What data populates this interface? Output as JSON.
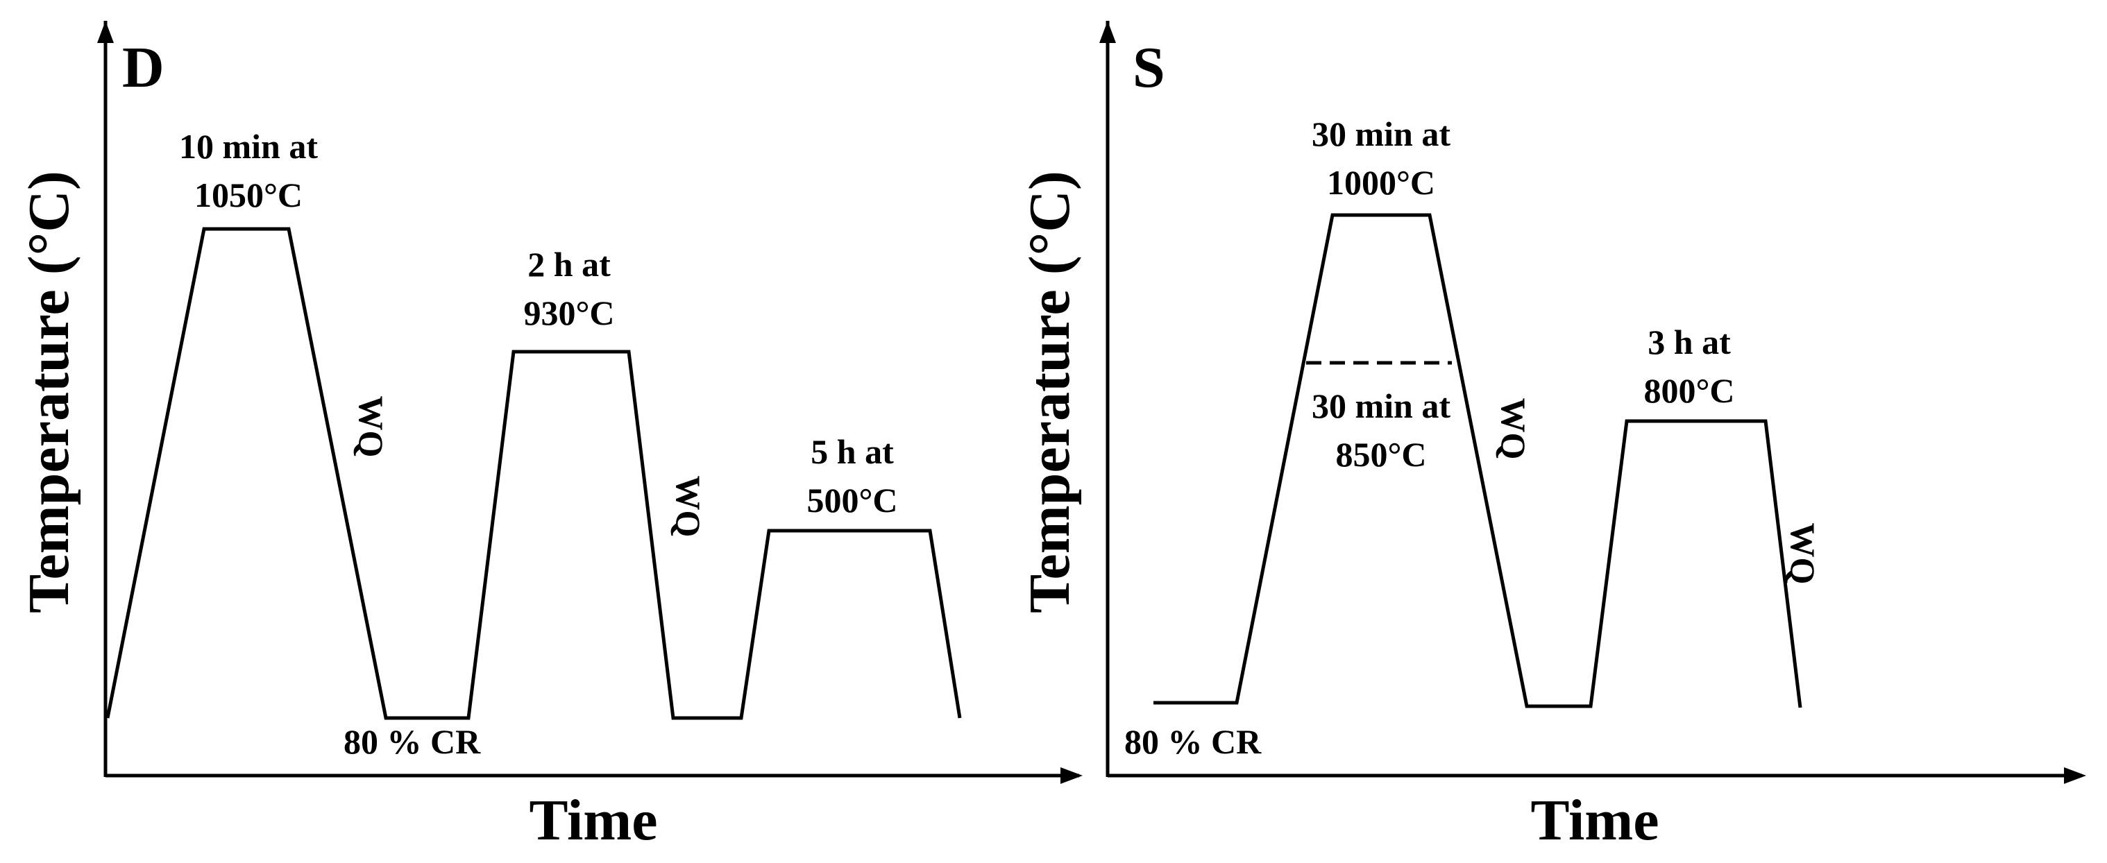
{
  "panels": [
    {
      "letter": "D",
      "ylabel": "Temperature (°C)",
      "xlabel": "Time",
      "annotations": {
        "step1_line1": "10 min at",
        "step1_line2": "1050°C",
        "step2_line1": "2 h at",
        "step2_line2": "930°C",
        "step3_line1": "5 h at",
        "step3_line2": "500°C",
        "cr": "80 % CR",
        "wq1": "WQ",
        "wq2": "WQ"
      }
    },
    {
      "letter": "S",
      "ylabel": "Temperature (°C)",
      "xlabel": "Time",
      "annotations": {
        "step1_line1": "30 min at",
        "step1_line2": "1000°C",
        "alt_line1": "30 min at",
        "alt_line2": "850°C",
        "step2_line1": "3 h at",
        "step2_line2": "800°C",
        "cr": "80 % CR",
        "wq1": "WQ",
        "wq2": "WQ"
      }
    }
  ],
  "colors": {
    "line": "#000000",
    "background": "#ffffff"
  }
}
